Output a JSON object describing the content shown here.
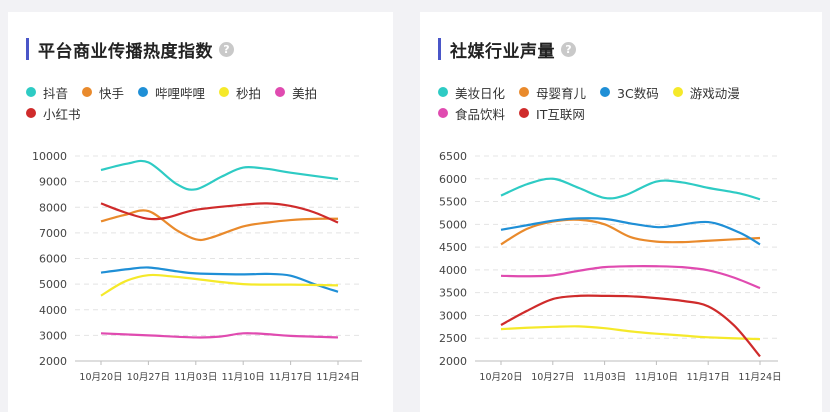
{
  "cards": [
    {
      "title": "平台商业传播热度指数",
      "help": "?"
    },
    {
      "title": "社媒行业声量",
      "help": "?"
    }
  ],
  "chart_data": [
    {
      "type": "line",
      "title": "平台商业传播热度指数",
      "x": [
        "10月20日",
        "10月27日",
        "11月03日",
        "11月10日",
        "11月17日",
        "11月24日"
      ],
      "y_ticks": [
        2000,
        3000,
        4000,
        5000,
        6000,
        7000,
        8000,
        9000,
        10000
      ],
      "ylim": [
        2000,
        10000
      ],
      "grid": true,
      "legend": "top",
      "series": [
        {
          "name": "抖音",
          "color": "#2ecbc4",
          "points": [
            [
              0,
              9450
            ],
            [
              0.55,
              9700
            ],
            [
              1,
              9750
            ],
            [
              1.6,
              8900
            ],
            [
              2,
              8700
            ],
            [
              2.55,
              9200
            ],
            [
              3,
              9550
            ],
            [
              3.5,
              9500
            ],
            [
              4,
              9350
            ],
            [
              5,
              9100
            ]
          ]
        },
        {
          "name": "快手",
          "color": "#e98a2c",
          "points": [
            [
              0,
              7450
            ],
            [
              0.5,
              7700
            ],
            [
              1,
              7850
            ],
            [
              1.6,
              7100
            ],
            [
              2,
              6750
            ],
            [
              2.3,
              6800
            ],
            [
              3,
              7250
            ],
            [
              3.5,
              7400
            ],
            [
              4,
              7500
            ],
            [
              4.6,
              7550
            ],
            [
              5,
              7550
            ]
          ]
        },
        {
          "name": "哔哩哔哩",
          "color": "#1f8fd6",
          "points": [
            [
              0,
              5450
            ],
            [
              0.55,
              5580
            ],
            [
              1,
              5650
            ],
            [
              1.6,
              5500
            ],
            [
              2,
              5420
            ],
            [
              3,
              5380
            ],
            [
              3.5,
              5400
            ],
            [
              4,
              5330
            ],
            [
              4.5,
              5000
            ],
            [
              5,
              4700
            ]
          ]
        },
        {
          "name": "秒拍",
          "color": "#f5e92a",
          "points": [
            [
              0,
              4550
            ],
            [
              0.5,
              5100
            ],
            [
              1,
              5350
            ],
            [
              1.5,
              5300
            ],
            [
              2,
              5200
            ],
            [
              3,
              5000
            ],
            [
              4,
              4980
            ],
            [
              5,
              4950
            ]
          ]
        },
        {
          "name": "美拍",
          "color": "#e04bb0",
          "points": [
            [
              0,
              3080
            ],
            [
              1,
              3000
            ],
            [
              2,
              2920
            ],
            [
              2.5,
              2950
            ],
            [
              3,
              3080
            ],
            [
              3.5,
              3050
            ],
            [
              4,
              2980
            ],
            [
              5,
              2920
            ]
          ]
        },
        {
          "name": "小红书",
          "color": "#cf2b2b",
          "points": [
            [
              0,
              8150
            ],
            [
              0.5,
              7800
            ],
            [
              1,
              7550
            ],
            [
              1.4,
              7600
            ],
            [
              2,
              7900
            ],
            [
              3,
              8100
            ],
            [
              3.5,
              8150
            ],
            [
              4,
              8050
            ],
            [
              4.5,
              7800
            ],
            [
              5,
              7400
            ]
          ]
        }
      ]
    },
    {
      "type": "line",
      "title": "社媒行业声量",
      "x": [
        "10月20日",
        "10月27日",
        "11月03日",
        "11月10日",
        "11月17日",
        "11月24日"
      ],
      "y_ticks": [
        2000,
        2500,
        3000,
        3500,
        4000,
        4500,
        5000,
        5500,
        6000,
        6500
      ],
      "ylim": [
        2000,
        6500
      ],
      "grid": true,
      "legend": "top",
      "series": [
        {
          "name": "美妆日化",
          "color": "#2ecbc4",
          "points": [
            [
              0,
              5630
            ],
            [
              0.5,
              5880
            ],
            [
              1,
              6000
            ],
            [
              1.5,
              5800
            ],
            [
              2,
              5580
            ],
            [
              2.4,
              5640
            ],
            [
              3,
              5940
            ],
            [
              3.5,
              5920
            ],
            [
              4,
              5800
            ],
            [
              4.6,
              5680
            ],
            [
              5,
              5550
            ]
          ]
        },
        {
          "name": "母婴育儿",
          "color": "#e98a2c",
          "points": [
            [
              0,
              4560
            ],
            [
              0.5,
              4900
            ],
            [
              1,
              5060
            ],
            [
              1.5,
              5100
            ],
            [
              2,
              5000
            ],
            [
              2.5,
              4720
            ],
            [
              3,
              4620
            ],
            [
              3.5,
              4610
            ],
            [
              4,
              4640
            ],
            [
              5,
              4700
            ]
          ]
        },
        {
          "name": "3C数码",
          "color": "#1f8fd6",
          "points": [
            [
              0,
              4880
            ],
            [
              0.5,
              4980
            ],
            [
              1,
              5080
            ],
            [
              1.5,
              5130
            ],
            [
              2,
              5120
            ],
            [
              2.5,
              5020
            ],
            [
              3,
              4940
            ],
            [
              3.3,
              4960
            ],
            [
              4,
              5050
            ],
            [
              4.6,
              4820
            ],
            [
              5,
              4560
            ]
          ]
        },
        {
          "name": "游戏动漫",
          "color": "#f5e92a",
          "points": [
            [
              0,
              2700
            ],
            [
              0.5,
              2730
            ],
            [
              1,
              2750
            ],
            [
              1.5,
              2760
            ],
            [
              2,
              2720
            ],
            [
              2.5,
              2650
            ],
            [
              3,
              2600
            ],
            [
              3.5,
              2560
            ],
            [
              4,
              2520
            ],
            [
              5,
              2480
            ]
          ]
        },
        {
          "name": "食品饮料",
          "color": "#e04bb0",
          "points": [
            [
              0,
              3870
            ],
            [
              0.5,
              3860
            ],
            [
              1,
              3880
            ],
            [
              1.5,
              3980
            ],
            [
              2,
              4060
            ],
            [
              2.5,
              4080
            ],
            [
              3,
              4080
            ],
            [
              3.5,
              4060
            ],
            [
              4,
              3990
            ],
            [
              4.5,
              3830
            ],
            [
              5,
              3600
            ]
          ]
        },
        {
          "name": "IT互联网",
          "color": "#cf2b2b",
          "points": [
            [
              0,
              2790
            ],
            [
              0.5,
              3100
            ],
            [
              1,
              3360
            ],
            [
              1.5,
              3430
            ],
            [
              2,
              3430
            ],
            [
              2.5,
              3420
            ],
            [
              3,
              3380
            ],
            [
              3.5,
              3320
            ],
            [
              4,
              3200
            ],
            [
              4.5,
              2780
            ],
            [
              5,
              2100
            ]
          ]
        }
      ]
    }
  ]
}
